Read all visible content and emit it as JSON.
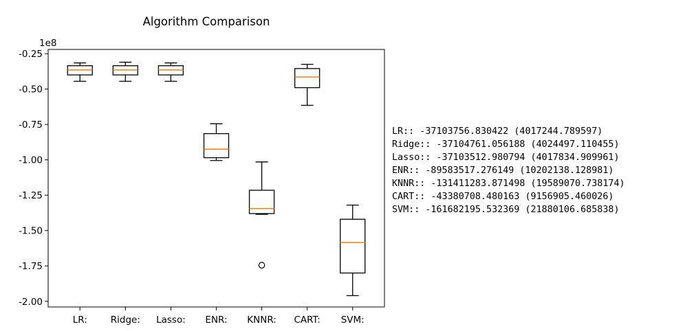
{
  "chart_data": {
    "type": "box",
    "title": "Algorithm Comparison",
    "offset_label": "1e8",
    "ylim": [
      -2.04,
      -0.22
    ],
    "yticks": [
      "-0.25",
      "-0.50",
      "-0.75",
      "-1.00",
      "-1.25",
      "-1.50",
      "-1.75",
      "-2.00"
    ],
    "ytick_values": [
      -0.25,
      -0.5,
      -0.75,
      -1.0,
      -1.25,
      -1.5,
      -1.75,
      -2.0
    ],
    "grid": false,
    "categories": [
      "LR:",
      "Ridge:",
      "Lasso:",
      "ENR:",
      "KNNR:",
      "CART:",
      "SVM:"
    ],
    "boxes": [
      {
        "whisker_low": -0.445,
        "q1": -0.4,
        "median": -0.365,
        "q3": -0.335,
        "whisker_high": -0.315,
        "fliers": []
      },
      {
        "whisker_low": -0.445,
        "q1": -0.4,
        "median": -0.365,
        "q3": -0.335,
        "whisker_high": -0.31,
        "fliers": []
      },
      {
        "whisker_low": -0.445,
        "q1": -0.4,
        "median": -0.365,
        "q3": -0.335,
        "whisker_high": -0.315,
        "fliers": []
      },
      {
        "whisker_low": -1.005,
        "q1": -0.985,
        "median": -0.925,
        "q3": -0.815,
        "whisker_high": -0.745,
        "fliers": []
      },
      {
        "whisker_low": -1.385,
        "q1": -1.38,
        "median": -1.345,
        "q3": -1.215,
        "whisker_high": -1.015,
        "fliers": [
          -1.745
        ]
      },
      {
        "whisker_low": -0.615,
        "q1": -0.49,
        "median": -0.415,
        "q3": -0.355,
        "whisker_high": -0.325,
        "fliers": []
      },
      {
        "whisker_low": -1.96,
        "q1": -1.8,
        "median": -1.585,
        "q3": -1.42,
        "whisker_high": -1.32,
        "fliers": []
      }
    ],
    "colors": {
      "box": "#000000",
      "median": "#ff7f0e",
      "flier": "#000000"
    }
  },
  "results": [
    "LR:: -37103756.830422 (4017244.789597)",
    "Ridge:: -37104761.056188 (4024497.110455)",
    "Lasso:: -37103512.980794 (4017834.909961)",
    "ENR:: -89583517.276149 (10202138.128981)",
    "KNNR:: -131411283.871498 (19589070.738174)",
    "CART:: -43380708.480163 (9156905.460026)",
    "SVM:: -161682195.532369 (21880106.685838)"
  ]
}
